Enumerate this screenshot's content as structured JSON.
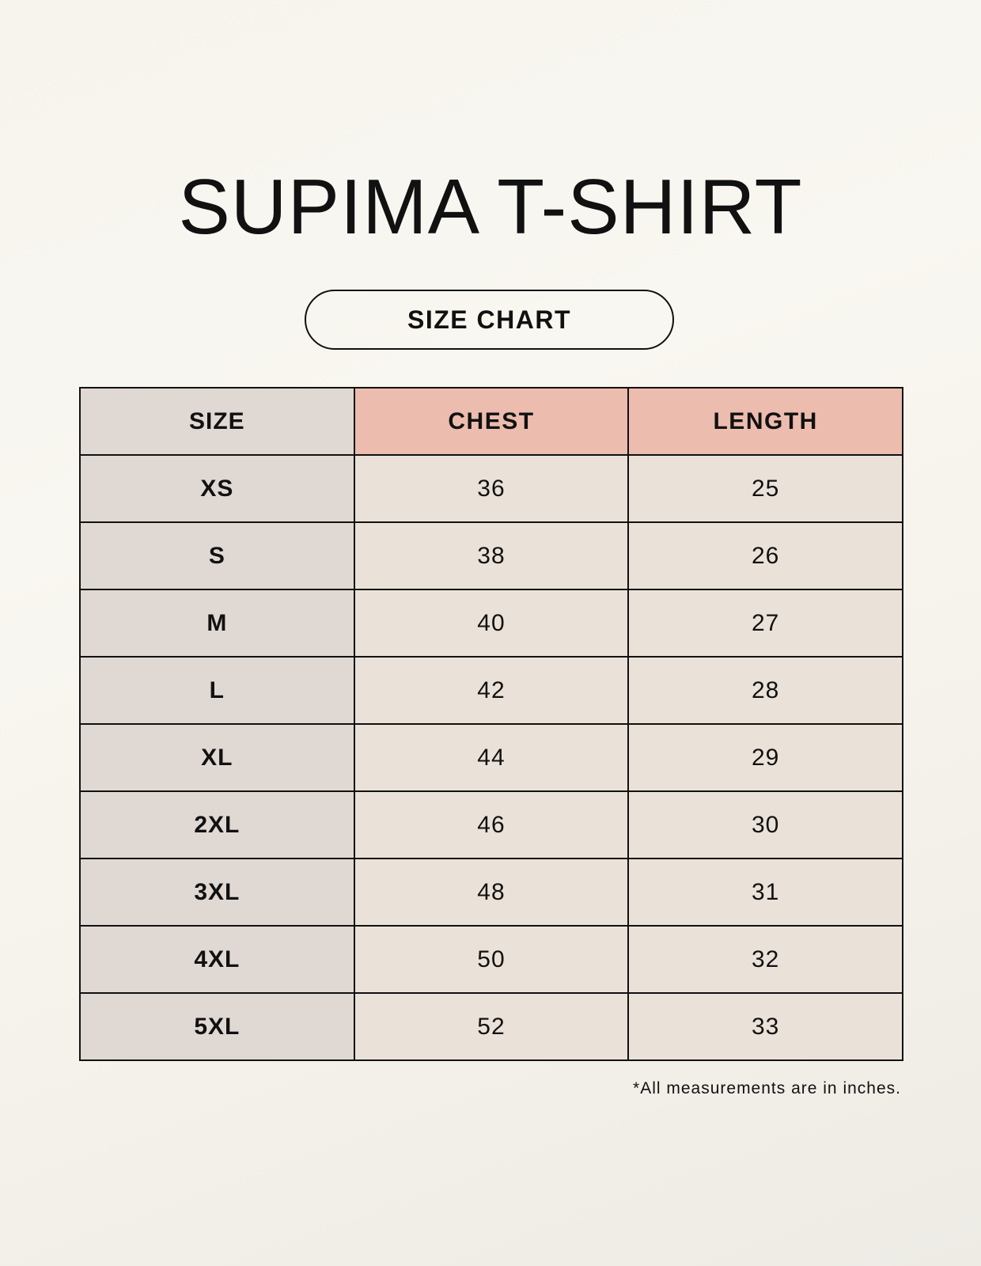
{
  "title": "SUPIMA T-SHIRT",
  "subtitle": "SIZE CHART",
  "colors": {
    "header_accent": "#ecbcae",
    "size_column": "#e0d8d3",
    "value_cells": "#eae2d8"
  },
  "table": {
    "headers": [
      "SIZE",
      "CHEST",
      "LENGTH"
    ],
    "rows": [
      [
        "XS",
        "36",
        "25"
      ],
      [
        "S",
        "38",
        "26"
      ],
      [
        "M",
        "40",
        "27"
      ],
      [
        "L",
        "42",
        "28"
      ],
      [
        "XL",
        "44",
        "29"
      ],
      [
        "2XL",
        "46",
        "30"
      ],
      [
        "3XL",
        "48",
        "31"
      ],
      [
        "4XL",
        "50",
        "32"
      ],
      [
        "5XL",
        "52",
        "33"
      ]
    ]
  },
  "footnote": "*All measurements are in inches."
}
